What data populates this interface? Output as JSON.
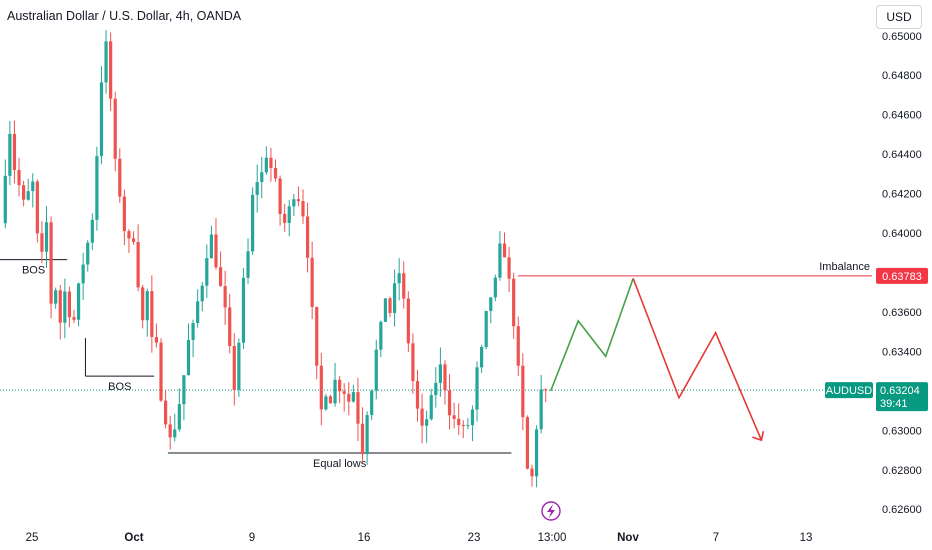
{
  "header": {
    "title": "Australian Dollar / U.S. Dollar, 4h, OANDA",
    "currency_button": "USD"
  },
  "colors": {
    "bull": "#26a69a",
    "bear": "#ef5350",
    "line_black": "#131722",
    "imbalance_line": "#f23645",
    "projection_up": "#43a047",
    "projection_down": "#e53935",
    "current_badge": "#089981",
    "imbalance_badge": "#f23645",
    "flash_icon": "#9c27b0"
  },
  "chart_data": {
    "type": "candlestick",
    "symbol": "AUDUSD",
    "ylim": [
      0.6252,
      0.6508
    ],
    "grid": false,
    "y_ticks": [
      "0.65000",
      "0.64800",
      "0.64600",
      "0.64400",
      "0.64200",
      "0.64000",
      "0.63600",
      "0.63400",
      "0.63000",
      "0.62800",
      "0.62600"
    ],
    "x_ticks": [
      {
        "label": "25",
        "bold": false
      },
      {
        "label": "Oct",
        "bold": true
      },
      {
        "label": "9",
        "bold": false
      },
      {
        "label": "16",
        "bold": false
      },
      {
        "label": "23",
        "bold": false
      },
      {
        "label": "13:00",
        "bold": false
      },
      {
        "label": "Nov",
        "bold": true
      },
      {
        "label": "7",
        "bold": false
      },
      {
        "label": "13",
        "bold": false
      }
    ],
    "price_path": [
      0.6405,
      0.6432,
      0.6452,
      0.6433,
      0.6424,
      0.6415,
      0.642,
      0.6425,
      0.6398,
      0.6388,
      0.6405,
      0.6365,
      0.6372,
      0.6355,
      0.637,
      0.636,
      0.6356,
      0.6372,
      0.6385,
      0.6395,
      0.6408,
      0.644,
      0.6478,
      0.6495,
      0.6468,
      0.6435,
      0.642,
      0.6402,
      0.6395,
      0.6398,
      0.6375,
      0.6355,
      0.637,
      0.6345,
      0.6342,
      0.6318,
      0.6306,
      0.6295,
      0.6302,
      0.6314,
      0.6328,
      0.6345,
      0.6352,
      0.6365,
      0.6375,
      0.639,
      0.6398,
      0.6385,
      0.6372,
      0.636,
      0.634,
      0.6322,
      0.6345,
      0.6375,
      0.639,
      0.6418,
      0.6427,
      0.643,
      0.644,
      0.6433,
      0.6425,
      0.641,
      0.6405,
      0.6412,
      0.642,
      0.6418,
      0.641,
      0.639,
      0.636,
      0.633,
      0.631,
      0.632,
      0.6316,
      0.6325,
      0.6322,
      0.632,
      0.6315,
      0.632,
      0.6305,
      0.629,
      0.631,
      0.6322,
      0.634,
      0.6352,
      0.6368,
      0.636,
      0.6372,
      0.638,
      0.6365,
      0.6345,
      0.6325,
      0.631,
      0.63,
      0.6306,
      0.6315,
      0.6325,
      0.6332,
      0.6322,
      0.631,
      0.6305,
      0.6303,
      0.63,
      0.6303,
      0.631,
      0.633,
      0.634,
      0.6358,
      0.6368,
      0.6375,
      0.6392,
      0.639,
      0.6375,
      0.6355,
      0.633,
      0.6305,
      0.628,
      0.6276,
      0.6302,
      0.632,
      0.632
    ],
    "current_price": 0.63204,
    "imbalance_price": 0.63783,
    "levels": [
      {
        "label": "BOS",
        "price": 0.63865,
        "from_bar": 0,
        "to_bar": 14
      },
      {
        "label": "BOS",
        "price": 0.63275,
        "from_bar": 18,
        "to_bar": 33
      },
      {
        "label": "Equal lows",
        "price": 0.62885,
        "from_bar": 36,
        "to_bar": 111
      }
    ],
    "projection": [
      {
        "date_offset_bars": 0,
        "price": 0.632
      },
      {
        "date_offset_bars": 6,
        "price": 0.63555
      },
      {
        "date_offset_bars": 12,
        "price": 0.63375
      },
      {
        "date_offset_bars": 18,
        "price": 0.6377
      },
      {
        "date_offset_bars": 28,
        "price": 0.63165
      },
      {
        "date_offset_bars": 36,
        "price": 0.63495
      },
      {
        "date_offset_bars": 46,
        "price": 0.6295
      }
    ],
    "annotations": {
      "imbalance_label": "Imbalance",
      "imbalance_badge": "0.63783",
      "current_symbol": "AUDUSD",
      "current_price_label": "0.63204",
      "countdown": "39:41"
    }
  }
}
